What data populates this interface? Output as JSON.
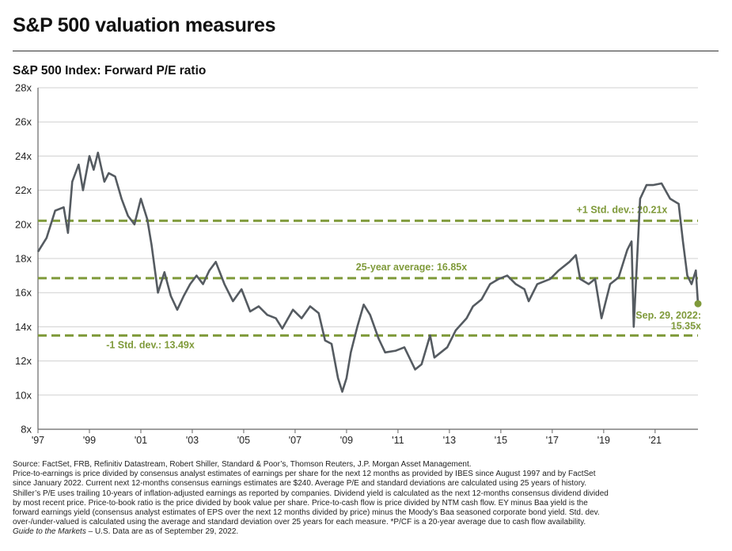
{
  "page": {
    "title": "S&P 500 valuation measures"
  },
  "chart_data": {
    "type": "line",
    "title": "S&P 500 Index: Forward P/E ratio",
    "xlabel": "",
    "ylabel": "",
    "x_ticks": [
      "'97",
      "'99",
      "'01",
      "'03",
      "'05",
      "'07",
      "'09",
      "'11",
      "'13",
      "'15",
      "'17",
      "'19",
      "'21"
    ],
    "y_ticks": [
      "8x",
      "10x",
      "12x",
      "14x",
      "16x",
      "18x",
      "20x",
      "22x",
      "24x",
      "26x",
      "28x"
    ],
    "xlim": [
      "1997-01",
      "2022-09"
    ],
    "ylim": [
      8,
      28
    ],
    "grid": "horizontal",
    "series": [
      {
        "name": "",
        "color": "#555b61",
        "x": [
          "1997-01",
          "1997-05",
          "1997-09",
          "1998-01",
          "1998-03",
          "1998-05",
          "1998-08",
          "1998-10",
          "1999-01",
          "1999-03",
          "1999-05",
          "1999-08",
          "1999-10",
          "2000-01",
          "2000-04",
          "2000-07",
          "2000-10",
          "2001-01",
          "2001-04",
          "2001-06",
          "2001-09",
          "2001-12",
          "2002-03",
          "2002-06",
          "2002-09",
          "2002-12",
          "2003-03",
          "2003-06",
          "2003-09",
          "2003-12",
          "2004-04",
          "2004-08",
          "2004-12",
          "2005-04",
          "2005-08",
          "2005-12",
          "2006-04",
          "2006-07",
          "2006-12",
          "2007-04",
          "2007-08",
          "2007-12",
          "2008-03",
          "2008-06",
          "2008-09",
          "2008-11",
          "2009-01",
          "2009-03",
          "2009-06",
          "2009-09",
          "2009-12",
          "2010-04",
          "2010-07",
          "2010-12",
          "2011-04",
          "2011-09",
          "2011-12",
          "2012-04",
          "2012-06",
          "2012-12",
          "2013-04",
          "2013-09",
          "2013-12",
          "2014-04",
          "2014-08",
          "2014-12",
          "2015-04",
          "2015-08",
          "2015-12",
          "2016-02",
          "2016-06",
          "2016-12",
          "2017-04",
          "2017-09",
          "2017-12",
          "2018-02",
          "2018-06",
          "2018-09",
          "2018-12",
          "2019-04",
          "2019-08",
          "2019-12",
          "2020-02",
          "2020-03",
          "2020-06",
          "2020-09",
          "2020-12",
          "2021-04",
          "2021-08",
          "2021-12",
          "2022-02",
          "2022-04",
          "2022-06",
          "2022-08",
          "2022-09"
        ],
        "values": [
          18.4,
          19.2,
          20.8,
          21.0,
          19.5,
          22.5,
          23.5,
          22.0,
          24.0,
          23.2,
          24.2,
          22.5,
          23.0,
          22.8,
          21.5,
          20.5,
          20.0,
          21.5,
          20.3,
          18.8,
          16.0,
          17.2,
          15.8,
          15.0,
          15.8,
          16.5,
          17.0,
          16.5,
          17.3,
          17.8,
          16.5,
          15.5,
          16.2,
          14.9,
          15.2,
          14.7,
          14.5,
          13.9,
          15.0,
          14.5,
          15.2,
          14.8,
          13.2,
          13.0,
          11.0,
          10.2,
          11.0,
          12.5,
          14.0,
          15.3,
          14.7,
          13.3,
          12.5,
          12.6,
          12.8,
          11.5,
          11.8,
          13.5,
          12.2,
          12.8,
          13.8,
          14.5,
          15.2,
          15.6,
          16.5,
          16.8,
          17.0,
          16.5,
          16.2,
          15.5,
          16.5,
          16.8,
          17.3,
          17.8,
          18.2,
          16.8,
          16.5,
          16.8,
          14.5,
          16.5,
          16.9,
          18.5,
          19.0,
          14.0,
          21.5,
          22.3,
          22.3,
          22.4,
          21.5,
          21.2,
          19.0,
          17.0,
          16.5,
          17.3,
          15.35
        ]
      }
    ],
    "reference_lines": [
      {
        "value": 20.21,
        "label": "+1 Std. dev.: 20.21x"
      },
      {
        "value": 16.85,
        "label": "25-year average: 16.85x"
      },
      {
        "value": 13.49,
        "label": "-1 Std. dev.: 13.49x"
      }
    ],
    "annotations": [
      {
        "x": "2022-09",
        "y": 15.35,
        "label_lines": [
          "Sep. 29, 2022:",
          "15.35x"
        ]
      }
    ],
    "line_color": "#555b61",
    "reference_color": "#7f9a3a"
  },
  "footnotes": {
    "source": "Source: FactSet, FRB, Refinitiv Datastream, Robert Shiller, Standard & Poor’s, Thomson Reuters, J.P. Morgan Asset Management.",
    "body": "Price-to-earnings is price divided by consensus analyst estimates of earnings per share for the next 12 months as provided by IBES since August 1997 and by FactSet since January 2022. Current next 12-months consensus earnings estimates are $240. Average P/E and standard deviations are calculated using 25 years of history. Shiller’s P/E uses trailing 10-years of inflation-adjusted earnings as reported by companies. Dividend yield is calculated as the next 12-months consensus dividend divided by most recent price. Price-to-book ratio is the price divided by book value per share. Price-to-cash flow is price divided by NTM cash flow. EY minus Baa yield is the forward earnings yield (consensus analyst estimates of EPS over the next 12 months divided by price) minus the Moody’s Baa seasoned corporate bond yield. Std. dev. over-/under-valued is calculated using the average and standard deviation over 25 years for each measure. *P/CF is a 20-year average due to cash flow availability.",
    "guide": "Guide to the Markets",
    "date_note": " – U.S. Data are as of September 29, 2022."
  }
}
